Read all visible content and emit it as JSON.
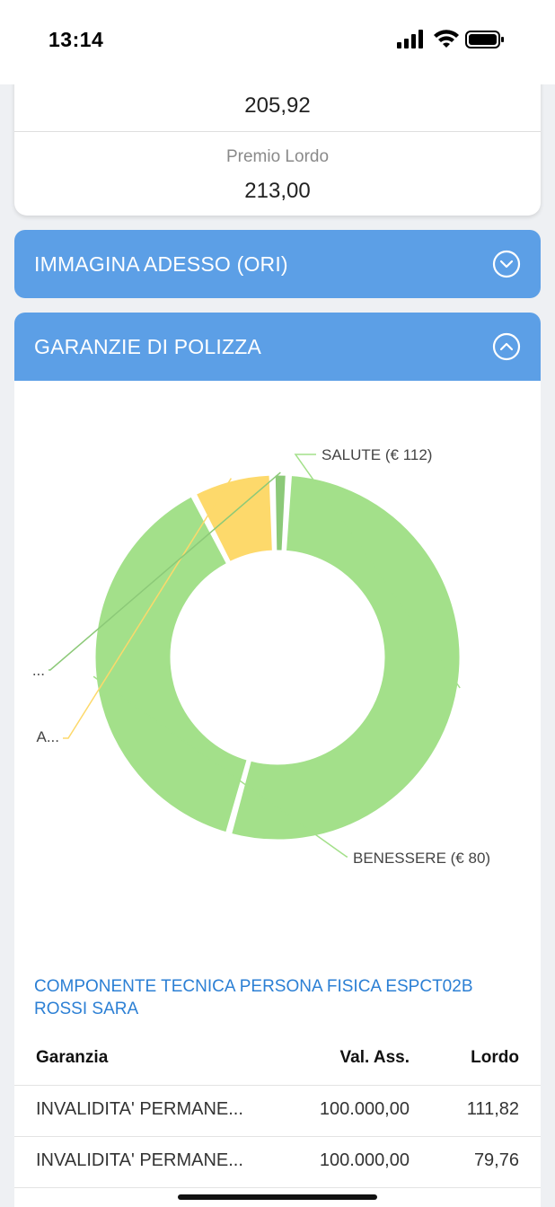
{
  "status_bar": {
    "time": "13:14"
  },
  "premium_card": {
    "prev_value": "205,92",
    "premio_lordo_label": "Premio Lordo",
    "premio_lordo_value": "213,00"
  },
  "accordions": [
    {
      "title": "IMMAGINA ADESSO (ORI)",
      "state": "collapsed"
    },
    {
      "title": "GARANZIE DI POLIZZA",
      "state": "expanded"
    }
  ],
  "chart_data": {
    "type": "pie",
    "style": "donut",
    "slices": [
      {
        "label": "SALUTE (€ 112)",
        "value": 112,
        "color": "#a3e08a"
      },
      {
        "label": "BENESSERE (€ 80)",
        "value": 80,
        "color": "#a3e08a"
      },
      {
        "label": "A...",
        "value": 15,
        "color": "#fdd96b"
      },
      {
        "label": "...",
        "value": 3,
        "color": "#8cc978"
      }
    ]
  },
  "policy": {
    "title": "COMPONENTE TECNICA PERSONA FISICA ESPCT02B ROSSI SARA"
  },
  "table": {
    "headers": [
      "Garanzia",
      "Val. Ass.",
      "Lordo"
    ],
    "rows": [
      [
        "INVALIDITA' PERMANE...",
        "100.000,00",
        "111,82"
      ],
      [
        "INVALIDITA' PERMANE...",
        "100.000,00",
        "79,76"
      ]
    ]
  },
  "colors": {
    "accent_blue": "#5c9fe6",
    "link_blue": "#2b7fd4"
  }
}
